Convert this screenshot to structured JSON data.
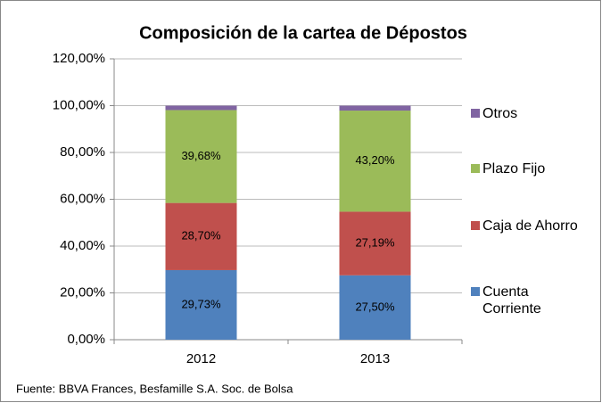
{
  "chart_data": {
    "type": "stacked_bar",
    "title": "Composición de la cartea de Dépostos",
    "categories": [
      "2012",
      "2013"
    ],
    "series": [
      {
        "name": "Cuenta Corriente",
        "color": "#4f81bd",
        "values": [
          29.73,
          27.5
        ],
        "value_labels": [
          "29,73%",
          "27,50%"
        ]
      },
      {
        "name": "Caja de Ahorro",
        "color": "#c0504d",
        "values": [
          28.7,
          27.19
        ],
        "value_labels": [
          "28,70%",
          "27,19%"
        ]
      },
      {
        "name": "Plazo Fijo",
        "color": "#9bbb59",
        "values": [
          39.68,
          43.2
        ],
        "value_labels": [
          "39,68%",
          "43,20%"
        ]
      },
      {
        "name": "Otros",
        "color": "#8064a2",
        "values": [
          1.89,
          2.11
        ]
      }
    ],
    "ylim": [
      0,
      120
    ],
    "yticks": [
      {
        "value": 0,
        "label": "0,00%"
      },
      {
        "value": 20,
        "label": "20,00%"
      },
      {
        "value": 40,
        "label": "40,00%"
      },
      {
        "value": 60,
        "label": "60,00%"
      },
      {
        "value": 80,
        "label": "80,00%"
      },
      {
        "value": 100,
        "label": "100,00%"
      },
      {
        "value": 120,
        "label": "120,00%"
      }
    ],
    "grid": true,
    "legend": "right",
    "source": "Fuente: BBVA Frances, Besfamille S.A. Soc. de Bolsa"
  }
}
